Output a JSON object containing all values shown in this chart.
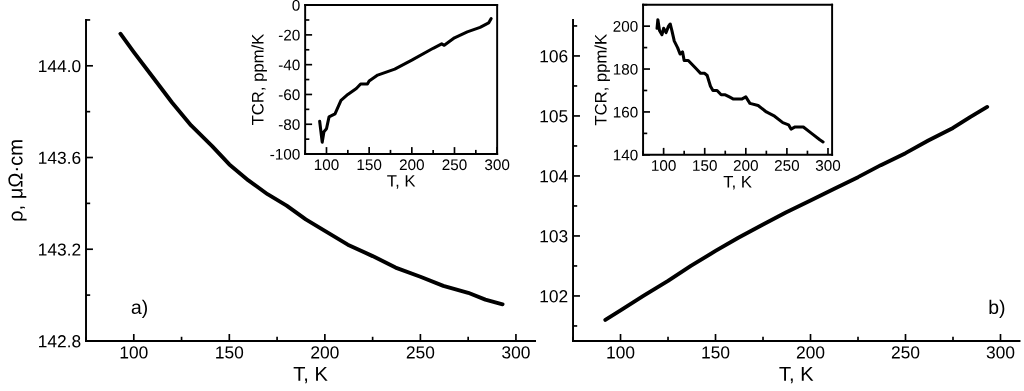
{
  "chart_data": [
    {
      "type": "line",
      "xlabel": "T, K",
      "ylabel": "ρ, μΩ·cm",
      "annotations": [
        "a)"
      ],
      "xlim": [
        75,
        310
      ],
      "xticks": [
        100,
        150,
        200,
        250,
        300
      ],
      "ylim": [
        142.8,
        144.2
      ],
      "yticks": [
        142.8,
        143.2,
        143.6,
        {
          "value": 144,
          "label": "144.0"
        }
      ],
      "grid": false,
      "series": [
        {
          "color": "#000000",
          "x": [
            93,
            100,
            110,
            120,
            130,
            141,
            150,
            160,
            170,
            180,
            190,
            200,
            212,
            225,
            237,
            250,
            262,
            275,
            284,
            293
          ],
          "values": [
            144.14,
            144.06,
            143.95,
            143.84,
            143.74,
            143.65,
            143.57,
            143.5,
            143.44,
            143.39,
            143.33,
            143.28,
            143.22,
            143.17,
            143.12,
            143.08,
            143.04,
            143.01,
            142.98,
            142.96
          ]
        }
      ]
    },
    {
      "type": "line",
      "xlabel": "T, K",
      "ylabel": "TCR, ppm/K",
      "xlim": [
        75,
        300
      ],
      "xticks": [
        100,
        150,
        200,
        250,
        300
      ],
      "ylim": [
        -100,
        0
      ],
      "yticks": [
        -100,
        -80,
        -60,
        -40,
        -20,
        0
      ],
      "grid": false,
      "series": [
        {
          "color": "#000000",
          "x": [
            92,
            95,
            97,
            100,
            103,
            110,
            117,
            125,
            135,
            140,
            148,
            150,
            160,
            175,
            180,
            200,
            225,
            235,
            238,
            250,
            265,
            280,
            290,
            293
          ],
          "values": [
            -78,
            -92,
            -85,
            -83,
            -75,
            -73,
            -64,
            -60,
            -56,
            -53,
            -53,
            -51,
            -47,
            -44,
            -43,
            -37,
            -29,
            -26,
            -27,
            -22,
            -18,
            -15,
            -12,
            -9
          ]
        }
      ]
    },
    {
      "type": "line",
      "xlabel": "T, K",
      "annotations": [
        "b)"
      ],
      "xlim": [
        75,
        310
      ],
      "xticks": [
        100,
        150,
        200,
        250,
        300
      ],
      "ylim": [
        101.25,
        106.6
      ],
      "yticks": [
        102,
        103,
        104,
        105,
        106
      ],
      "grid": false,
      "series": [
        {
          "color": "#000000",
          "x": [
            92,
            100,
            112,
            125,
            137,
            150,
            162,
            175,
            187,
            200,
            212,
            225,
            237,
            250,
            262,
            275,
            284,
            293
          ],
          "values": [
            101.6,
            101.76,
            102.0,
            102.25,
            102.5,
            102.75,
            102.97,
            103.19,
            103.39,
            103.59,
            103.78,
            103.98,
            104.18,
            104.38,
            104.59,
            104.8,
            104.98,
            105.15
          ]
        }
      ]
    },
    {
      "type": "line",
      "xlabel": "T, K",
      "ylabel": "TCR, ppm/K",
      "xlim": [
        75,
        305
      ],
      "xticks": [
        100,
        150,
        200,
        250,
        300
      ],
      "ylim": [
        140,
        210
      ],
      "yticks": [
        140,
        160,
        180,
        200
      ],
      "grid": false,
      "series": [
        {
          "color": "#000000",
          "x": [
            92,
            93,
            95,
            98,
            100,
            103,
            106,
            108,
            110,
            113,
            117,
            120,
            123,
            125,
            130,
            135,
            140,
            145,
            150,
            153,
            157,
            160,
            165,
            170,
            175,
            180,
            185,
            190,
            195,
            200,
            205,
            215,
            225,
            235,
            245,
            252,
            255,
            260,
            270,
            280,
            290,
            294
          ],
          "values": [
            199,
            203,
            198,
            196,
            199,
            197,
            200,
            201,
            198,
            193,
            190,
            187,
            188,
            184,
            184,
            182,
            180,
            178,
            178,
            177,
            172,
            170,
            170,
            168,
            168,
            167,
            166,
            166,
            166,
            167,
            164,
            163,
            160,
            158,
            155,
            154,
            152,
            153,
            153,
            150,
            147,
            146
          ]
        }
      ]
    }
  ]
}
